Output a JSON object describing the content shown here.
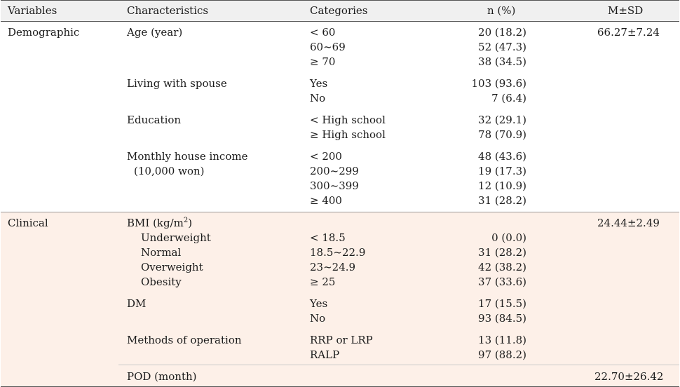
{
  "headers": {
    "variables": "Variables",
    "characteristics": "Characteristics",
    "categories": "Categories",
    "n_pct": "n (%)",
    "msd": "M±SD"
  },
  "demographic": {
    "label": "Demographic",
    "age": {
      "label": "Age (year)",
      "cats": [
        "< 60",
        "60~69",
        "≥ 70"
      ],
      "ns": [
        "20 (18.2)",
        "52 (47.3)",
        "38 (34.5)"
      ],
      "msd": "66.27±7.24"
    },
    "spouse": {
      "label": "Living with spouse",
      "cats": [
        "Yes",
        "No"
      ],
      "ns": [
        "103 (93.6)",
        "7 (6.4)"
      ]
    },
    "education": {
      "label": "Education",
      "cats": [
        "< High school",
        "≥ High school"
      ],
      "ns": [
        "32 (29.1)",
        "78 (70.9)"
      ]
    },
    "income": {
      "label": "Monthly house income",
      "label2": "(10,000 won)",
      "cats": [
        "< 200",
        "200~299",
        "300~399",
        "≥ 400"
      ],
      "ns": [
        "48 (43.6)",
        "19 (17.3)",
        "12 (10.9)",
        "31 (28.2)"
      ]
    }
  },
  "clinical": {
    "label": "Clinical",
    "bmi": {
      "label": "BMI (kg/m",
      "label_sup": "2",
      "label_end": ")",
      "msd": "24.44±2.49",
      "subs": [
        "Underweight",
        "Normal",
        "Overweight",
        "Obesity"
      ],
      "cats": [
        "< 18.5",
        "18.5~22.9",
        "23~24.9",
        "≥ 25"
      ],
      "ns": [
        "0 (0.0)",
        "31 (28.2)",
        "42 (38.2)",
        "37 (33.6)"
      ]
    },
    "dm": {
      "label": "DM",
      "cats": [
        "Yes",
        "No"
      ],
      "ns": [
        "17 (15.5)",
        "93 (84.5)"
      ]
    },
    "operation": {
      "label": "Methods of operation",
      "cats": [
        "RRP or LRP",
        "RALP"
      ],
      "ns": [
        "13 (11.8)",
        "97 (88.2)"
      ]
    },
    "pod": {
      "label": "POD (month)",
      "msd": "22.70±26.42"
    }
  }
}
